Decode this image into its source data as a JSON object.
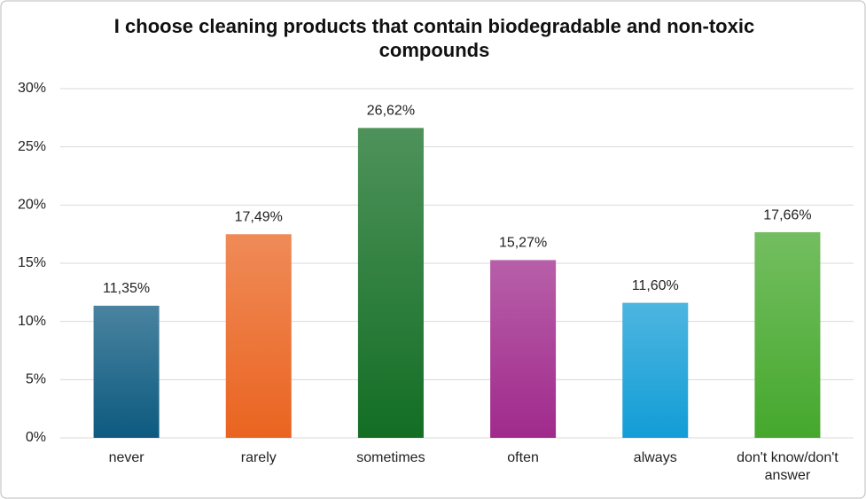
{
  "chart_data": {
    "type": "bar",
    "title": "I choose cleaning products that contain biodegradable and non-toxic compounds",
    "categories": [
      "never",
      "rarely",
      "sometimes",
      "often",
      "always",
      "don't know/don't answer"
    ],
    "values": [
      11.35,
      17.49,
      26.62,
      15.27,
      11.6,
      17.66
    ],
    "value_labels": [
      "11,35%",
      "17,49%",
      "26,62%",
      "15,27%",
      "11,60%",
      "17,66%"
    ],
    "colors": [
      "#0d5a80",
      "#ea6420",
      "#136e24",
      "#a02a8c",
      "#129dd6",
      "#45a82c"
    ],
    "ylim": [
      0,
      30
    ],
    "yticks": [
      {
        "value": 0,
        "label": "0%"
      },
      {
        "value": 5,
        "label": "5%"
      },
      {
        "value": 10,
        "label": "10%"
      },
      {
        "value": 15,
        "label": "15%"
      },
      {
        "value": 20,
        "label": "20%"
      },
      {
        "value": 25,
        "label": "25%"
      },
      {
        "value": 30,
        "label": "30%"
      }
    ],
    "grid": true
  }
}
